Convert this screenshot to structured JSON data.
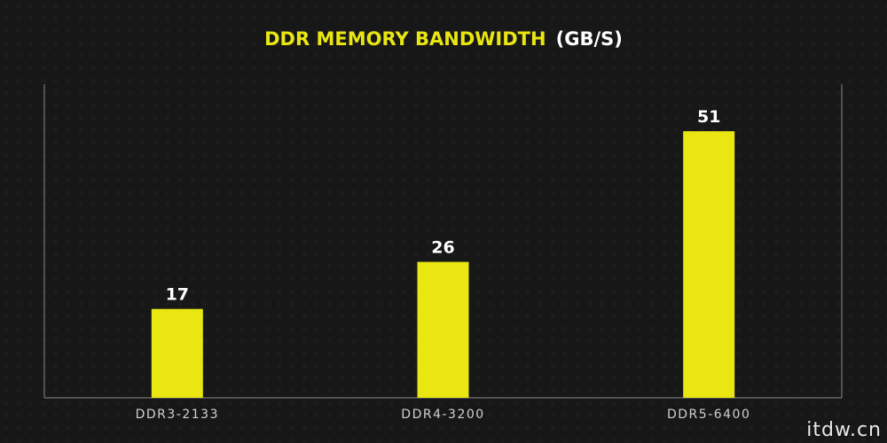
{
  "chart_data": {
    "type": "bar",
    "title": "DDR MEMORY BANDWIDTH",
    "title_unit": "(GB/S)",
    "categories": [
      "DDR3-2133",
      "DDR4-3200",
      "DDR5-6400"
    ],
    "values": [
      17,
      26,
      51
    ],
    "xlabel": "",
    "ylabel": "",
    "ylim": [
      0,
      60
    ],
    "grid": false,
    "legend": "none",
    "colors": {
      "bar": "#e9e612",
      "title": "#e9e612",
      "title_unit": "#ffffff",
      "axis": "#8a8a8a",
      "value_label": "#ffffff",
      "category_label": "#d0d0d0"
    }
  },
  "watermark": "itdw.cn"
}
